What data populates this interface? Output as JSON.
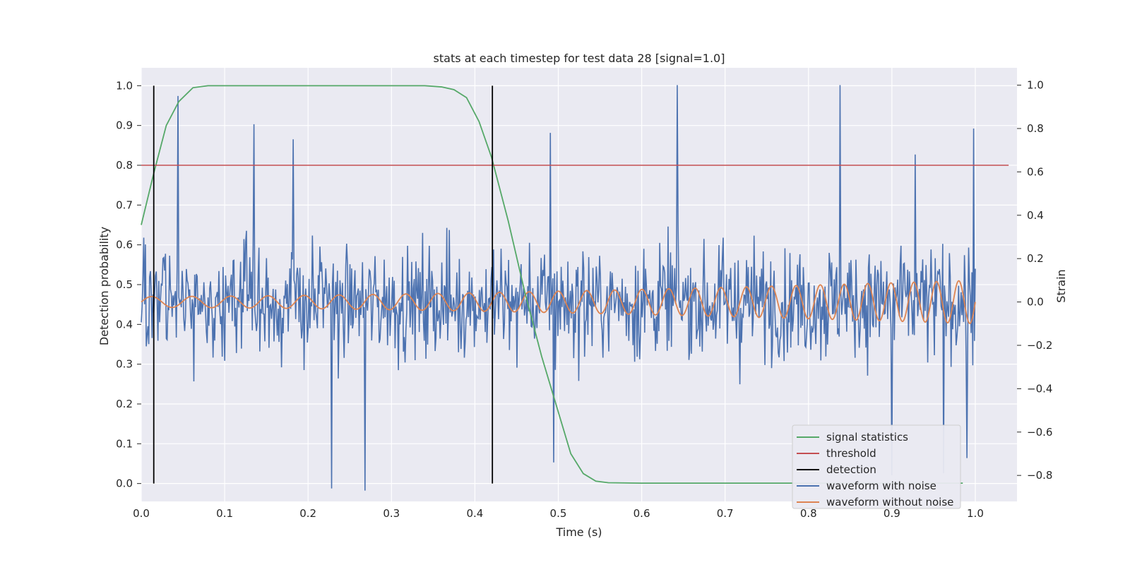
{
  "chart_data": {
    "type": "line",
    "title": "stats at each timestep for test data 28 [signal=1.0]",
    "xlabel": "Time (s)",
    "ylabel_left": "Detection probability",
    "ylabel_right": "Strain",
    "xlim": [
      0.0,
      1.05
    ],
    "ylim_left": [
      -0.045,
      1.045
    ],
    "ylim_right": [
      -0.92,
      1.08
    ],
    "x_ticks": [
      "0.0",
      "0.1",
      "0.2",
      "0.3",
      "0.4",
      "0.5",
      "0.6",
      "0.7",
      "0.8",
      "0.9",
      "1.0"
    ],
    "x_tick_values": [
      0.0,
      0.1,
      0.2,
      0.3,
      0.4,
      0.5,
      0.6,
      0.7,
      0.8,
      0.9,
      1.0
    ],
    "y_left_ticks": [
      "0.0",
      "0.1",
      "0.2",
      "0.3",
      "0.4",
      "0.5",
      "0.6",
      "0.7",
      "0.8",
      "0.9",
      "1.0"
    ],
    "y_left_tick_values": [
      0.0,
      0.1,
      0.2,
      0.3,
      0.4,
      0.5,
      0.6,
      0.7,
      0.8,
      0.9,
      1.0
    ],
    "y_right_ticks": [
      "−0.8",
      "−0.6",
      "−0.4",
      "−0.2",
      "0.0",
      "0.2",
      "0.4",
      "0.6",
      "0.8",
      "1.0"
    ],
    "y_right_tick_values": [
      -0.8,
      -0.6,
      -0.4,
      -0.2,
      0.0,
      0.2,
      0.4,
      0.6,
      0.8,
      1.0
    ],
    "grid": true,
    "legend_position": "lower-right",
    "colors": {
      "background": "#eaeaf2",
      "grid": "#ffffff",
      "signal": "#55a868",
      "threshold": "#c44e52",
      "detection": "#000000",
      "noisy": "#4c72b0",
      "clean": "#dd8452"
    },
    "series": [
      {
        "name": "signal statistics",
        "axis": "left",
        "x": [
          0.0,
          0.015,
          0.03,
          0.045,
          0.062,
          0.08,
          0.1,
          0.15,
          0.2,
          0.25,
          0.3,
          0.34,
          0.36,
          0.375,
          0.39,
          0.405,
          0.42,
          0.44,
          0.46,
          0.48,
          0.5,
          0.515,
          0.53,
          0.545,
          0.56,
          0.6,
          0.7,
          0.8,
          0.9,
          0.985
        ],
        "y": [
          0.65,
          0.78,
          0.9,
          0.96,
          0.995,
          1.0,
          1.0,
          1.0,
          1.0,
          1.0,
          1.0,
          1.0,
          0.997,
          0.99,
          0.97,
          0.91,
          0.82,
          0.66,
          0.48,
          0.32,
          0.18,
          0.075,
          0.025,
          0.006,
          0.002,
          0.001,
          0.001,
          0.001,
          0.001,
          0.001
        ]
      },
      {
        "name": "threshold",
        "axis": "left",
        "x": [
          0.0,
          1.04
        ],
        "y": [
          0.8,
          0.8
        ]
      },
      {
        "name": "detection",
        "axis": "left",
        "x": [
          0.015,
          0.421
        ],
        "y_range": [
          0.0,
          1.0
        ]
      },
      {
        "name": "waveform with noise",
        "axis": "right",
        "x_range": [
          0.0,
          1.0
        ],
        "n_points": 1000,
        "approx_range": [
          -0.9,
          1.0
        ],
        "peaks": [
          [
            0.044,
            0.95
          ],
          [
            0.135,
            0.82
          ],
          [
            0.182,
            0.75
          ],
          [
            0.49,
            0.78
          ],
          [
            0.643,
            1.0
          ],
          [
            0.838,
            1.0
          ],
          [
            0.928,
            0.68
          ],
          [
            0.998,
            0.8
          ]
        ],
        "troughs": [
          [
            0.228,
            -0.86
          ],
          [
            0.268,
            -0.87
          ],
          [
            0.494,
            -0.74
          ],
          [
            0.9,
            -0.8
          ],
          [
            0.962,
            -0.79
          ],
          [
            0.99,
            -0.72
          ]
        ]
      },
      {
        "name": "waveform without noise",
        "axis": "right",
        "x_range": [
          0.0,
          1.0
        ],
        "f0_hz": 20,
        "f1_hz": 38,
        "amp0": 0.025,
        "amp1": 0.1
      }
    ]
  },
  "legend": {
    "items": [
      {
        "label": "signal statistics",
        "color": "#55a868"
      },
      {
        "label": "threshold",
        "color": "#c44e52"
      },
      {
        "label": "detection",
        "color": "#000000"
      },
      {
        "label": "waveform with noise",
        "color": "#4c72b0"
      },
      {
        "label": "waveform without noise",
        "color": "#dd8452"
      }
    ]
  }
}
